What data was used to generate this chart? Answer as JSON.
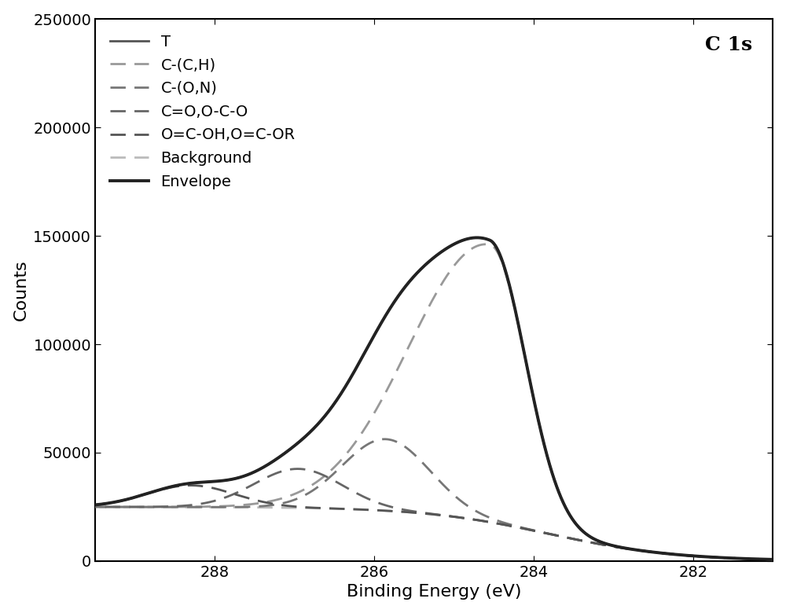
{
  "title": "C 1s",
  "xlabel": "Binding Energy (eV)",
  "ylabel": "Counts",
  "xlim": [
    289.5,
    281.0
  ],
  "ylim": [
    0,
    250000
  ],
  "yticks": [
    0,
    50000,
    100000,
    150000,
    200000,
    250000
  ],
  "xticks": [
    288,
    286,
    284,
    282
  ],
  "background_color": "#ffffff",
  "legend_fontsize": 14,
  "axis_fontsize": 16,
  "tick_fontsize": 14,
  "components": {
    "T": {
      "color": "#555555",
      "linestyle": "solid",
      "linewidth": 2.0,
      "label": "T"
    },
    "C_CH": {
      "color": "#999999",
      "linewidth": 2.0,
      "label": "C-(C,H)"
    },
    "C_ON": {
      "color": "#777777",
      "linewidth": 2.0,
      "label": "C-(O,N)"
    },
    "C_OCO": {
      "color": "#666666",
      "linewidth": 2.0,
      "label": "C=O,O-C-O"
    },
    "O_COOH": {
      "color": "#555555",
      "linewidth": 2.0,
      "label": "O=C-OH,O=C-OR"
    },
    "Background": {
      "color": "#bbbbbb",
      "linewidth": 2.0,
      "label": "Background"
    },
    "Envelope": {
      "color": "#222222",
      "linestyle": "solid",
      "linewidth": 2.8,
      "label": "Envelope"
    }
  }
}
